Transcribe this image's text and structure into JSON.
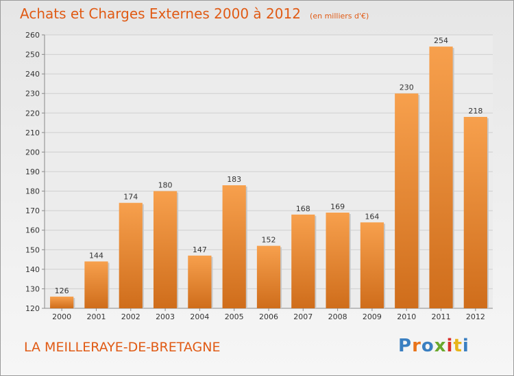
{
  "title": "Achats et Charges Externes 2000 à 2012",
  "unit": "(en milliers d'€)",
  "place": "LA MEILLERAYE-DE-BRETAGNE",
  "logo": {
    "letters": [
      "P",
      "r",
      "o",
      "x",
      "i",
      "t",
      "i"
    ],
    "colors": [
      "#3a7fc1",
      "#e8731a",
      "#3a7fc1",
      "#6aa82e",
      "#d9302c",
      "#e8b41a",
      "#3a7fc1"
    ]
  },
  "colors": {
    "bar_top": "#f7a04d",
    "bar_bottom": "#cf6d1b",
    "title": "#e05a14"
  },
  "chart_data": {
    "type": "bar",
    "categories": [
      "2000",
      "2001",
      "2002",
      "2003",
      "2004",
      "2005",
      "2006",
      "2007",
      "2008",
      "2009",
      "2010",
      "2011",
      "2012"
    ],
    "values": [
      126,
      144,
      174,
      180,
      147,
      183,
      152,
      168,
      169,
      164,
      230,
      254,
      218
    ],
    "ylim": [
      120,
      260
    ],
    "yticks": [
      120,
      130,
      140,
      150,
      160,
      170,
      180,
      190,
      200,
      210,
      220,
      230,
      240,
      250,
      260
    ],
    "grid": true,
    "data_labels": true
  }
}
